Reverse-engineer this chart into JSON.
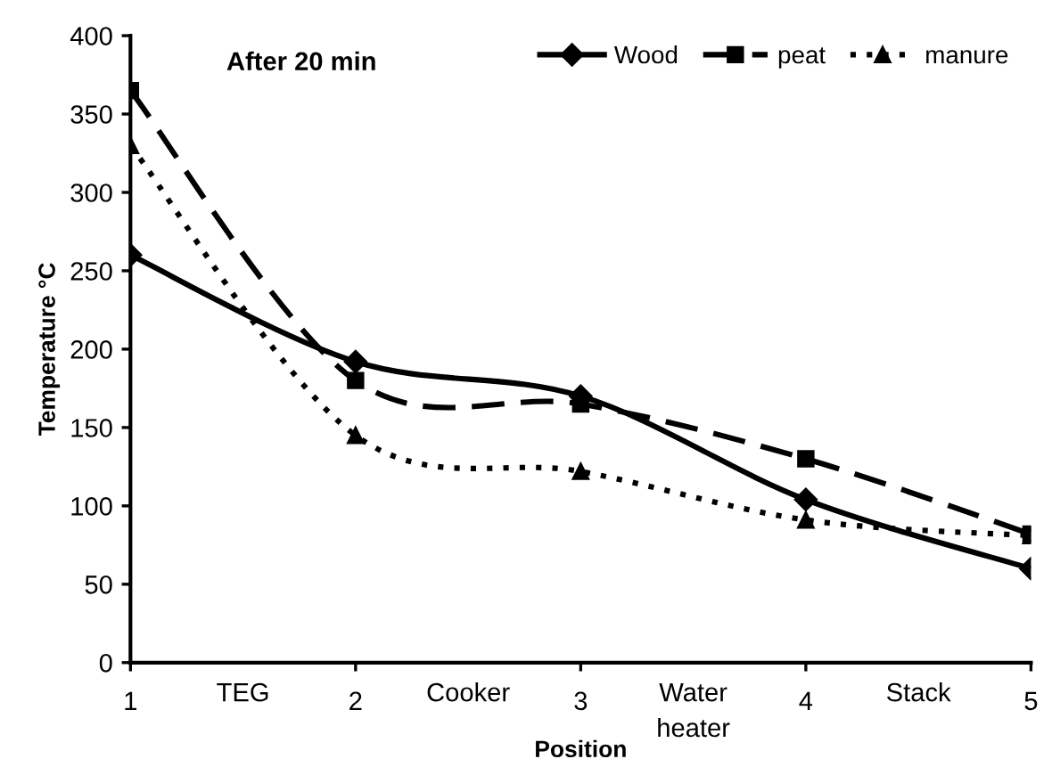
{
  "chart_data": {
    "type": "line",
    "title": "After 20 min",
    "xlabel": "Position",
    "ylabel": "Temperature °C",
    "x": [
      1,
      2,
      3,
      4,
      5
    ],
    "series": [
      {
        "name": "Wood",
        "color": "#000000",
        "values": [
          260,
          192,
          170,
          104,
          60
        ],
        "marker": "diamond",
        "line_style": "solid"
      },
      {
        "name": "peat",
        "color": "#000000",
        "values": [
          365,
          180,
          165,
          130,
          82
        ],
        "marker": "square",
        "line_style": "dashed"
      },
      {
        "name": "manure",
        "color": "#000000",
        "values": [
          330,
          145,
          122,
          91,
          81
        ],
        "marker": "triangle",
        "line_style": "dotted"
      }
    ],
    "xlim": [
      1,
      5
    ],
    "xticks": [
      1,
      2,
      3,
      4,
      5
    ],
    "ylim": [
      0,
      400
    ],
    "yticks": [
      0,
      50,
      100,
      150,
      200,
      250,
      300,
      350,
      400
    ],
    "annotations": [
      "TEG",
      "Cooker",
      "Water\nheater",
      "Stack"
    ],
    "grid": false,
    "legend": "top right"
  }
}
